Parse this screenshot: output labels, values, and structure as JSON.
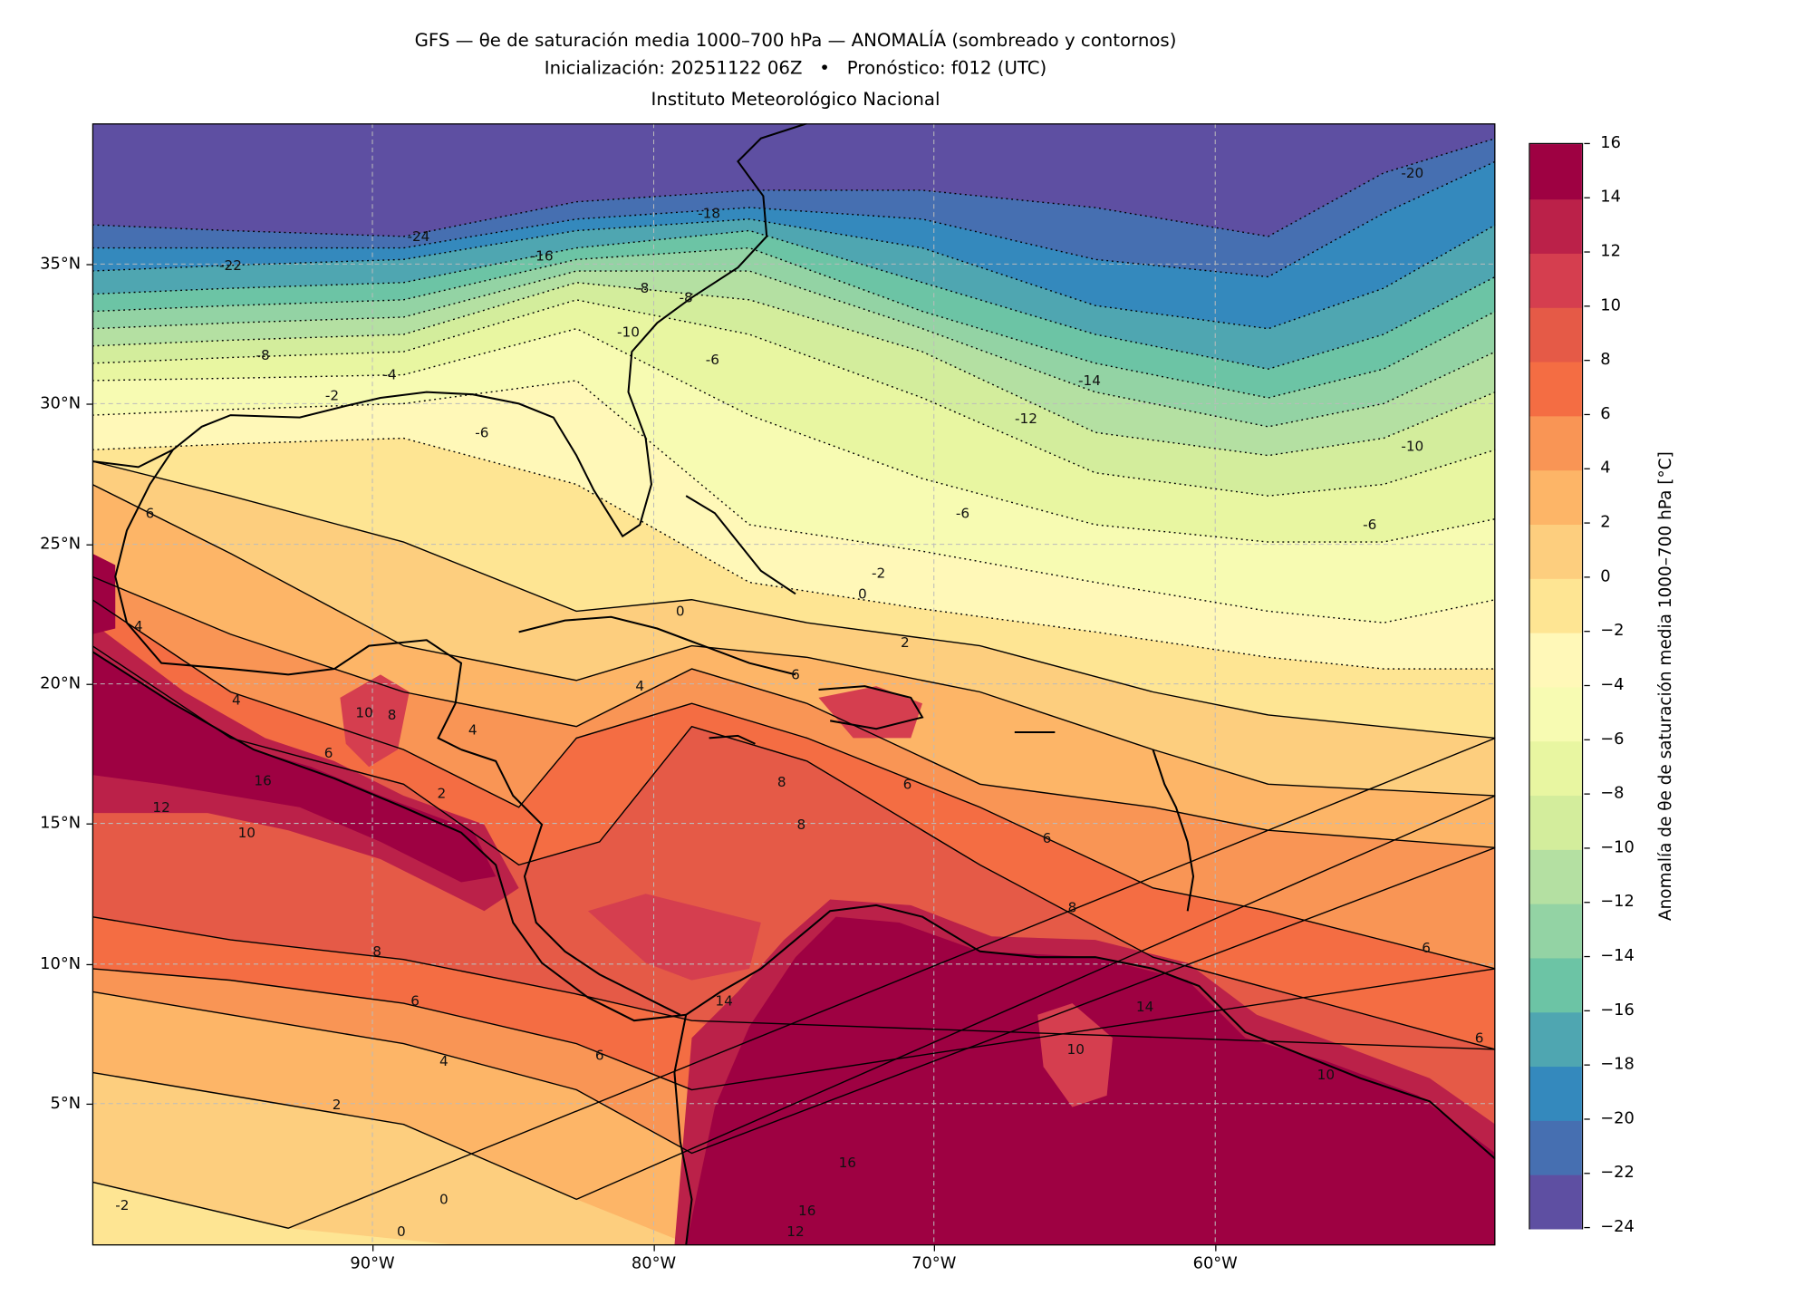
{
  "title": {
    "line1": "GFS — θe de saturación media 1000–700 hPa — ANOMALÍA (sombreado y contornos)",
    "line2": "Inicialización: 20251122 06Z   •   Pronóstico: f012 (UTC)",
    "line3": "Instituto Meteorológico Nacional"
  },
  "chart_data": {
    "type": "heatmap",
    "subtype": "filled contour map",
    "title": "GFS — θe de saturación media 1000–700 hPa — ANOMALÍA (sombreado y contornos)",
    "xlabel": "",
    "ylabel": "",
    "xlim": [
      -100,
      -50
    ],
    "ylim": [
      0,
      40
    ],
    "x_ticks": [
      "90°W",
      "80°W",
      "70°W",
      "60°W"
    ],
    "y_ticks": [
      "35°N",
      "30°N",
      "25°N",
      "20°N",
      "15°N",
      "10°N",
      "5°N"
    ],
    "grid": true,
    "colorbar": {
      "label": "Anomalía de θe de saturación media 1000–700 hPa [°C]",
      "levels": [
        -24,
        -22,
        -20,
        -18,
        -16,
        -14,
        -12,
        -10,
        -8,
        -6,
        -4,
        -2,
        0,
        2,
        4,
        6,
        8,
        10,
        12,
        14,
        16
      ],
      "tick_labels": [
        "16",
        "14",
        "12",
        "10",
        "8",
        "6",
        "4",
        "2",
        "0",
        "−2",
        "−4",
        "−6",
        "−8",
        "−10",
        "−12",
        "−14",
        "−16",
        "−18",
        "−20",
        "−22",
        "−24"
      ],
      "colors": [
        "#5e4fa2",
        "#466fb1",
        "#3489bd",
        "#4fa6b1",
        "#6cc4a5",
        "#93d3a4",
        "#b4e0a2",
        "#d3ed9c",
        "#e8f6a1",
        "#f7fbb2",
        "#fff8b8",
        "#fee593",
        "#fdce7e",
        "#fdb567",
        "#f99555",
        "#f46d43",
        "#e55a47",
        "#d53e4f",
        "#bb2149",
        "#9e0142"
      ]
    },
    "summary": "Negative anomalies (−24 to −10) over the northern Atlantic/US; near zero over the Gulf of Mexico and Bahamas; positive anomalies increasing southward over the Caribbean (+4 to +10) and maximal (+16) over northern South America and the eastern Pacific off southern Mexico."
  },
  "map": {
    "contour_labels": [
      "-24",
      "-22",
      "-18",
      "-16",
      "-20",
      "-8",
      "-4",
      "-2",
      "-6",
      "-6",
      "-14",
      "-12",
      "-10",
      "-6",
      "-6",
      "-2",
      "0",
      "0",
      "2",
      "4",
      "6",
      "8",
      "8",
      "6",
      "6",
      "8",
      "10",
      "8",
      "4",
      "6",
      "10",
      "12",
      "16",
      "8",
      "6",
      "4",
      "2",
      "6",
      "0",
      "0",
      "-2",
      "6",
      "4",
      "4",
      "2",
      "6",
      "6",
      "10",
      "14",
      "16",
      "16",
      "12",
      "10",
      "14",
      "-8",
      "-8",
      "-10"
    ]
  }
}
